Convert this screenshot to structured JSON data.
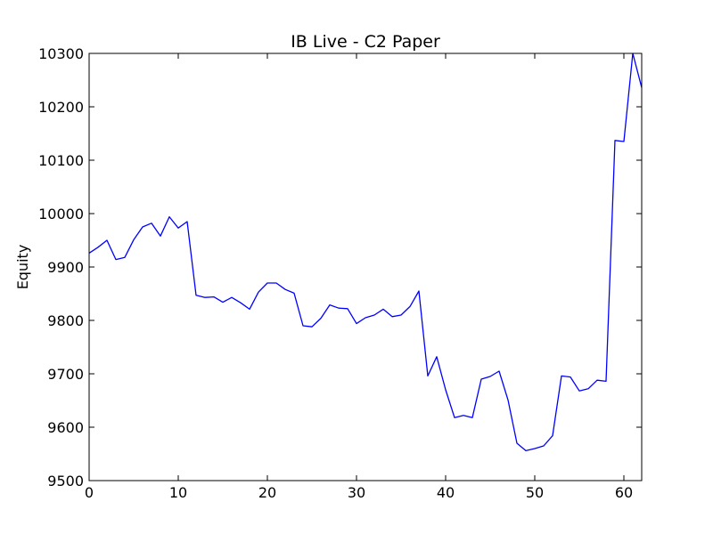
{
  "chart_data": {
    "type": "line",
    "title": "IB Live - C2 Paper",
    "xlabel": "",
    "ylabel": "Equity",
    "xlim": [
      0,
      62
    ],
    "ylim": [
      9500,
      10300
    ],
    "xticks": [
      0,
      10,
      20,
      30,
      40,
      50,
      60
    ],
    "yticks": [
      9500,
      9600,
      9700,
      9800,
      9900,
      10000,
      10100,
      10200,
      10300
    ],
    "grid": false,
    "line_color": "#0000ff",
    "series": [
      {
        "x": [
          0,
          1,
          2,
          3,
          4,
          5,
          6,
          7,
          8,
          9,
          10,
          11,
          12,
          13,
          14,
          15,
          16,
          17,
          18,
          19,
          20,
          21,
          22,
          23,
          24,
          25,
          26,
          27,
          28,
          29,
          30,
          31,
          32,
          33,
          34,
          35,
          36,
          37,
          38,
          39,
          40,
          41,
          42,
          43,
          44,
          45,
          46,
          47,
          48,
          49,
          50,
          51,
          52,
          53,
          54,
          55,
          56,
          57,
          58,
          59,
          60,
          61,
          62
        ],
        "values": [
          9926,
          9937,
          9950,
          9914,
          9918,
          9951,
          9975,
          9982,
          9958,
          9994,
          9973,
          9985,
          9847,
          9843,
          9844,
          9834,
          9843,
          9833,
          9821,
          9853,
          9870,
          9870,
          9858,
          9851,
          9790,
          9788,
          9804,
          9829,
          9823,
          9822,
          9794,
          9805,
          9810,
          9821,
          9807,
          9810,
          9826,
          9855,
          9696,
          9732,
          9670,
          9618,
          9622,
          9618,
          9690,
          9695,
          9705,
          9651,
          9570,
          9556,
          9560,
          9565,
          9584,
          9696,
          9694,
          9668,
          9672,
          9688,
          9686,
          10137,
          10135,
          10300,
          10236
        ]
      }
    ]
  }
}
